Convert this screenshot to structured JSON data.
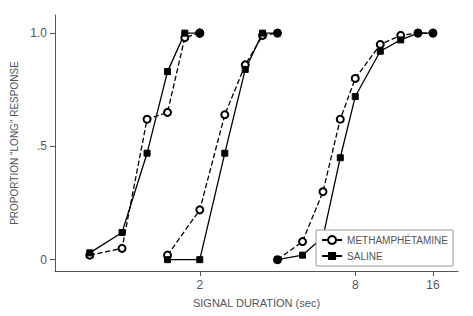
{
  "chart_data": {
    "type": "line",
    "xlabel": "SIGNAL DURATION (sec)",
    "ylabel": "PROPORTION \"LONG\" RESPONSE",
    "log": "x",
    "grid": false,
    "legend": "lower right",
    "xlim": [
      0.55,
      20
    ],
    "xticks": [
      2,
      8,
      16
    ],
    "ylim": [
      -0.05,
      1.08
    ],
    "yticks": [
      0,
      {
        "value": 0.5,
        "label": ".5"
      },
      {
        "value": 1.0,
        "label": "1.0"
      }
    ],
    "series": [
      {
        "name": "METHAMPHÉTAMINE",
        "color": "black",
        "line_style": "dashed",
        "marker": "circle",
        "x": [
          0.75,
          1.0,
          1.25,
          1.5,
          1.75,
          2.0,
          2.0
        ],
        "values": [
          0.02,
          0.05,
          0.62,
          0.65,
          0.98,
          1.0,
          1.0
        ]
      },
      {
        "name": "SALINE",
        "color": "black",
        "line_style": "solid",
        "marker": "square",
        "x": [
          0.75,
          1.0,
          1.25,
          1.5,
          1.75,
          2.0
        ],
        "values": [
          0.03,
          0.12,
          0.47,
          0.83,
          1.0,
          1.0
        ]
      },
      {
        "name": "METHAMPHÉTAMINE",
        "color": "black",
        "line_style": "dashed",
        "marker": "circle",
        "x": [
          1.5,
          2.0,
          2.5,
          3.0,
          3.5,
          4.0
        ],
        "values": [
          0.02,
          0.22,
          0.64,
          0.86,
          0.99,
          1.0
        ]
      },
      {
        "name": "SALINE",
        "color": "black",
        "line_style": "solid",
        "marker": "square",
        "x": [
          1.5,
          2.0,
          2.5,
          3.0,
          3.5,
          4.0
        ],
        "values": [
          0.0,
          0.0,
          0.47,
          0.84,
          1.0,
          1.0
        ]
      },
      {
        "name": "METHAMPHÉTAMINE",
        "color": "black",
        "line_style": "dashed",
        "marker": "circle",
        "x": [
          4.0,
          5.0,
          6.0,
          7.0,
          8.0,
          10.0,
          12.0,
          14.0,
          16.0
        ],
        "values": [
          0.0,
          0.08,
          0.3,
          0.62,
          0.8,
          0.95,
          0.99,
          1.0,
          1.0
        ]
      },
      {
        "name": "SALINE",
        "color": "black",
        "line_style": "solid",
        "marker": "square",
        "x": [
          4.0,
          5.0,
          6.0,
          7.0,
          8.0,
          10.0,
          12.0,
          14.0,
          16.0
        ],
        "values": [
          0.0,
          0.02,
          0.1,
          0.45,
          0.72,
          0.92,
          0.97,
          1.0,
          1.0
        ]
      }
    ]
  }
}
